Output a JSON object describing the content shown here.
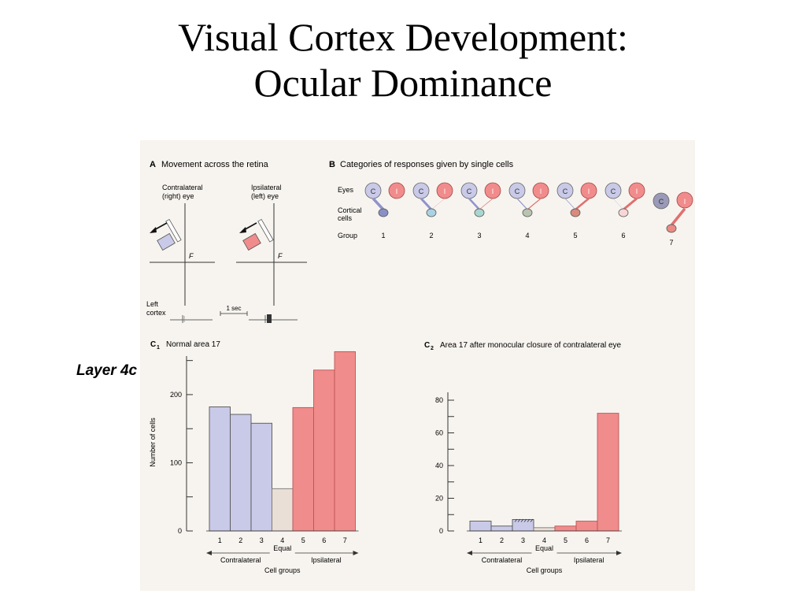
{
  "slide": {
    "title_line1": "Visual Cortex Development:",
    "title_line2": "Ocular Dominance",
    "side_label": "Layer 4c"
  },
  "panel_a": {
    "letter": "A",
    "title": "Movement across the retina",
    "contra_label_1": "Contralateral",
    "contra_label_2": "(right) eye",
    "ipsi_label_1": "Ipsilateral",
    "ipsi_label_2": "(left) eye",
    "fixation": "F",
    "cortex_label_1": "Left",
    "cortex_label_2": "cortex",
    "scale": "1 sec"
  },
  "panel_b": {
    "letter": "B",
    "title": "Categories of responses given by single cells",
    "row_eyes": "Eyes",
    "row_cortical_1": "Cortical",
    "row_cortical_2": "cells",
    "row_group": "Group",
    "contra_letter": "C",
    "ipsi_letter": "I",
    "groups": [
      "1",
      "2",
      "3",
      "4",
      "5",
      "6",
      "7"
    ]
  },
  "colors": {
    "contralateral": "#c9c9e8",
    "equal": "#eadfd6",
    "ipsilateral": "#f08c8c",
    "figure_bg": "#f7f4ef"
  },
  "chart_data": [
    {
      "type": "bar",
      "panel_letter": "C",
      "panel_sub": "1",
      "title": "Normal area 17",
      "categories": [
        "1",
        "2",
        "3",
        "4",
        "5",
        "6",
        "7"
      ],
      "values": [
        182,
        171,
        158,
        62,
        181,
        236,
        263
      ],
      "ylabel": "Number of cells",
      "xlabel": "Cell groups",
      "ylim": [
        0,
        260
      ],
      "yticks": [
        0,
        100,
        200
      ],
      "annotations": {
        "equal": "Equal",
        "contra": "Contralateral",
        "ipsi": "Ipsilateral"
      },
      "grid": false
    },
    {
      "type": "bar",
      "panel_letter": "C",
      "panel_sub": "2",
      "title": "Area 17 after monocular closure of contralateral eye",
      "categories": [
        "1",
        "2",
        "3",
        "4",
        "5",
        "6",
        "7"
      ],
      "values": [
        6,
        3,
        7,
        2,
        3,
        6,
        72
      ],
      "ylabel": "",
      "xlabel": "Cell groups",
      "ylim": [
        0,
        80
      ],
      "yticks": [
        0,
        20,
        40,
        60,
        80
      ],
      "annotations": {
        "equal": "Equal",
        "contra": "Contralateral",
        "ipsi": "Ipsilateral"
      },
      "grid": false
    }
  ]
}
